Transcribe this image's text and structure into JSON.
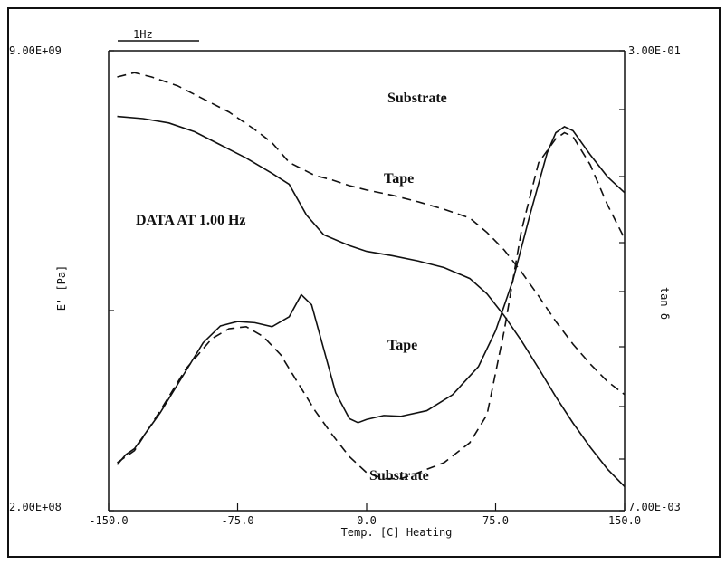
{
  "chart_data": {
    "type": "line",
    "marker_label": "1Hz",
    "data_note": "DATA AT 1.00 Hz",
    "xlabel": "Temp. [C] Heating",
    "ylabel_left": "E' [Pa]",
    "ylabel_right": "tan δ",
    "xlim": [
      -150,
      150
    ],
    "x_ticks": [
      "-150.0",
      "-75.0",
      "0.0",
      "75.0",
      "150.0"
    ],
    "y_left_ticks": [
      "9.00E+09",
      "2.00E+08"
    ],
    "y_right_ticks": [
      "3.00E-01",
      "7.00E-03"
    ],
    "annotations": [
      "Substrate",
      "Tape",
      "Tape",
      "Substrate"
    ],
    "series": [
      {
        "name": "Substrate",
        "style": "dashed",
        "axis": "left",
        "x": [
          -145,
          -135,
          -125,
          -110,
          -95,
          -80,
          -65,
          -55,
          -45,
          -30,
          -20,
          -10,
          0,
          15,
          30,
          45,
          60,
          70,
          80,
          90,
          100,
          110,
          120,
          130,
          140,
          150
        ],
        "y": [
          6.9,
          7.0,
          6.9,
          6.7,
          6.4,
          6.1,
          5.7,
          5.4,
          4.95,
          4.65,
          4.55,
          4.42,
          4.32,
          4.2,
          4.05,
          3.88,
          3.68,
          3.35,
          2.95,
          2.45,
          1.9,
          1.32,
          0.8,
          0.35,
          -0.05,
          -0.35
        ]
      },
      {
        "name": "Tape",
        "style": "solid",
        "axis": "left",
        "x": [
          -145,
          -130,
          -115,
          -100,
          -85,
          -70,
          -55,
          -45,
          -35,
          -25,
          -10,
          0,
          15,
          30,
          45,
          60,
          70,
          80,
          90,
          100,
          110,
          120,
          130,
          140,
          150
        ],
        "y": [
          6.0,
          5.95,
          5.85,
          5.65,
          5.35,
          5.05,
          4.7,
          4.45,
          3.75,
          3.3,
          3.05,
          2.92,
          2.82,
          2.7,
          2.55,
          2.3,
          1.95,
          1.45,
          0.88,
          0.25,
          -0.4,
          -1.0,
          -1.55,
          -2.05,
          -2.45
        ]
      },
      {
        "name": "Tape",
        "style": "solid",
        "axis": "right",
        "x": [
          -145,
          -140,
          -135,
          -120,
          -105,
          -95,
          -85,
          -75,
          -65,
          -55,
          -45,
          -38,
          -32,
          -25,
          -18,
          -10,
          -5,
          0,
          10,
          20,
          35,
          50,
          65,
          75,
          85,
          95,
          105,
          110,
          115,
          120,
          130,
          140,
          150
        ],
        "y": [
          -7.45,
          -7.2,
          -7.05,
          -6.15,
          -5.1,
          -4.4,
          -3.98,
          -3.87,
          -3.9,
          -4.0,
          -3.75,
          -3.2,
          -3.45,
          -4.55,
          -5.65,
          -6.3,
          -6.4,
          -6.32,
          -6.22,
          -6.24,
          -6.1,
          -5.7,
          -5.0,
          -4.1,
          -2.85,
          -1.2,
          0.35,
          0.85,
          1.0,
          0.9,
          0.3,
          -0.25,
          -0.65
        ]
      },
      {
        "name": "Substrate",
        "style": "dashed",
        "axis": "right",
        "x": [
          -145,
          -135,
          -120,
          -105,
          -90,
          -80,
          -70,
          -60,
          -50,
          -40,
          -30,
          -20,
          -10,
          0,
          10,
          20,
          30,
          45,
          60,
          70,
          80,
          90,
          100,
          110,
          115,
          120,
          130,
          140,
          150
        ],
        "y": [
          -7.4,
          -7.1,
          -6.1,
          -5.05,
          -4.3,
          -4.05,
          -4.0,
          -4.25,
          -4.7,
          -5.4,
          -6.1,
          -6.7,
          -7.25,
          -7.65,
          -7.8,
          -7.8,
          -7.65,
          -7.4,
          -6.9,
          -6.2,
          -4.1,
          -1.6,
          0.1,
          0.7,
          0.85,
          0.75,
          0.05,
          -0.95,
          -1.8
        ]
      }
    ]
  }
}
